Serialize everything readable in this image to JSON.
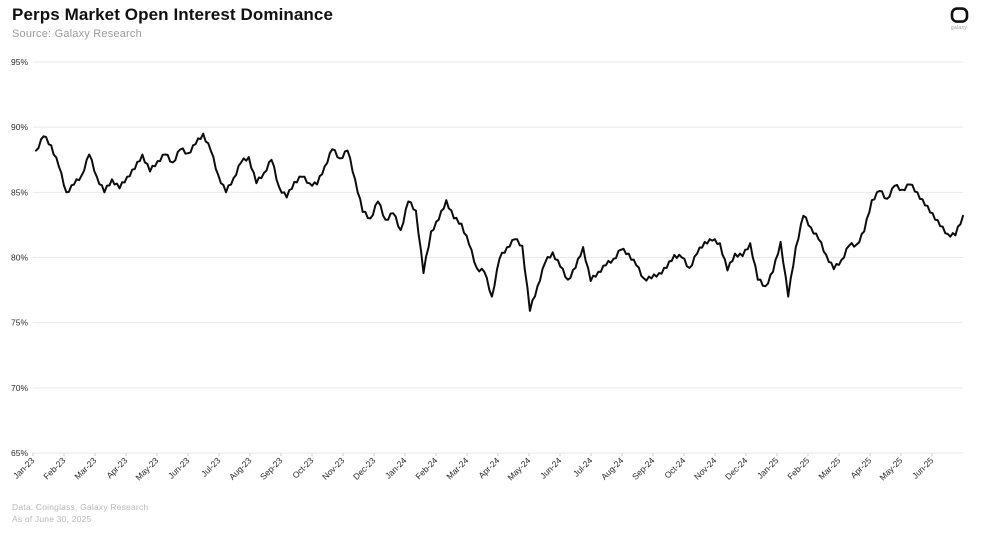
{
  "header": {
    "title": "Perps Market Open Interest Dominance",
    "subtitle": "Source: Galaxy Research"
  },
  "logo": {
    "label": "galaxy"
  },
  "footer": {
    "line1": "Data: Coinglass, Galaxy Research",
    "line2": "As of June 30, 2025"
  },
  "chart_data": {
    "type": "line",
    "title": "Perps Market Open Interest Dominance",
    "xlabel": "",
    "ylabel": "",
    "ylim": [
      65,
      95
    ],
    "ytick_labels": [
      "95%",
      "90%",
      "85%",
      "80%",
      "75%",
      "70%",
      "65%"
    ],
    "ytick_values": [
      95,
      90,
      85,
      80,
      75,
      70,
      65
    ],
    "grid": "horizontal",
    "legend": "none",
    "line_color": "#0d0d0d",
    "grid_color": "#e9e9e9",
    "tick_label_color": "#2b2b2b",
    "x_tick_labels": [
      "Jan-23",
      "Feb-23",
      "Mar-23",
      "Apr-23",
      "May-23",
      "Jun-23",
      "Jul-23",
      "Aug-23",
      "Sep-23",
      "Oct-23",
      "Nov-23",
      "Dec-23",
      "Jan-24",
      "Feb-24",
      "Mar-24",
      "Apr-24",
      "May-24",
      "Jun-24",
      "Jul-24",
      "Aug-24",
      "Sep-24",
      "Oct-24",
      "Nov-24",
      "Dec-24",
      "Jan-25",
      "Feb-25",
      "Mar-25",
      "Apr-25",
      "May-25",
      "Jun-25"
    ],
    "series": [
      {
        "name": "Perps Market Open Interest Dominance",
        "unit": "%",
        "sampling": "approx-weekly from Jan-2023 to Jun-30-2025",
        "values": [
          88.2,
          89.3,
          88.6,
          87.0,
          85.0,
          85.6,
          86.3,
          87.9,
          86.2,
          85.0,
          86.0,
          85.3,
          86.2,
          86.8,
          87.9,
          86.6,
          87.4,
          87.9,
          87.3,
          88.3,
          88.0,
          88.7,
          89.5,
          88.2,
          86.3,
          85.0,
          86.1,
          87.3,
          87.7,
          85.7,
          86.5,
          87.5,
          85.4,
          84.6,
          85.8,
          86.2,
          85.7,
          85.6,
          87.0,
          88.3,
          87.6,
          88.2,
          86.0,
          83.5,
          83.0,
          84.3,
          82.9,
          83.4,
          82.1,
          84.3,
          83.6,
          78.8,
          82.0,
          82.9,
          84.4,
          83.0,
          82.6,
          81.0,
          79.2,
          78.9,
          77.0,
          79.9,
          80.8,
          81.4,
          80.9,
          75.9,
          77.8,
          79.6,
          80.4,
          79.3,
          78.3,
          79.2,
          80.8,
          78.2,
          78.9,
          79.4,
          79.9,
          80.6,
          80.3,
          79.4,
          78.4,
          78.4,
          78.8,
          79.2,
          80.2,
          80.0,
          79.2,
          80.3,
          81.2,
          81.3,
          81.1,
          79.0,
          80.3,
          80.1,
          81.1,
          78.3,
          77.8,
          78.9,
          81.2,
          77.0,
          80.8,
          83.2,
          82.3,
          81.4,
          80.2,
          79.1,
          79.8,
          80.9,
          81.0,
          82.0,
          84.4,
          85.1,
          84.5,
          85.5,
          85.2,
          85.6,
          85.0,
          84.0,
          83.4,
          82.4,
          81.8,
          81.7,
          83.2
        ]
      }
    ]
  }
}
